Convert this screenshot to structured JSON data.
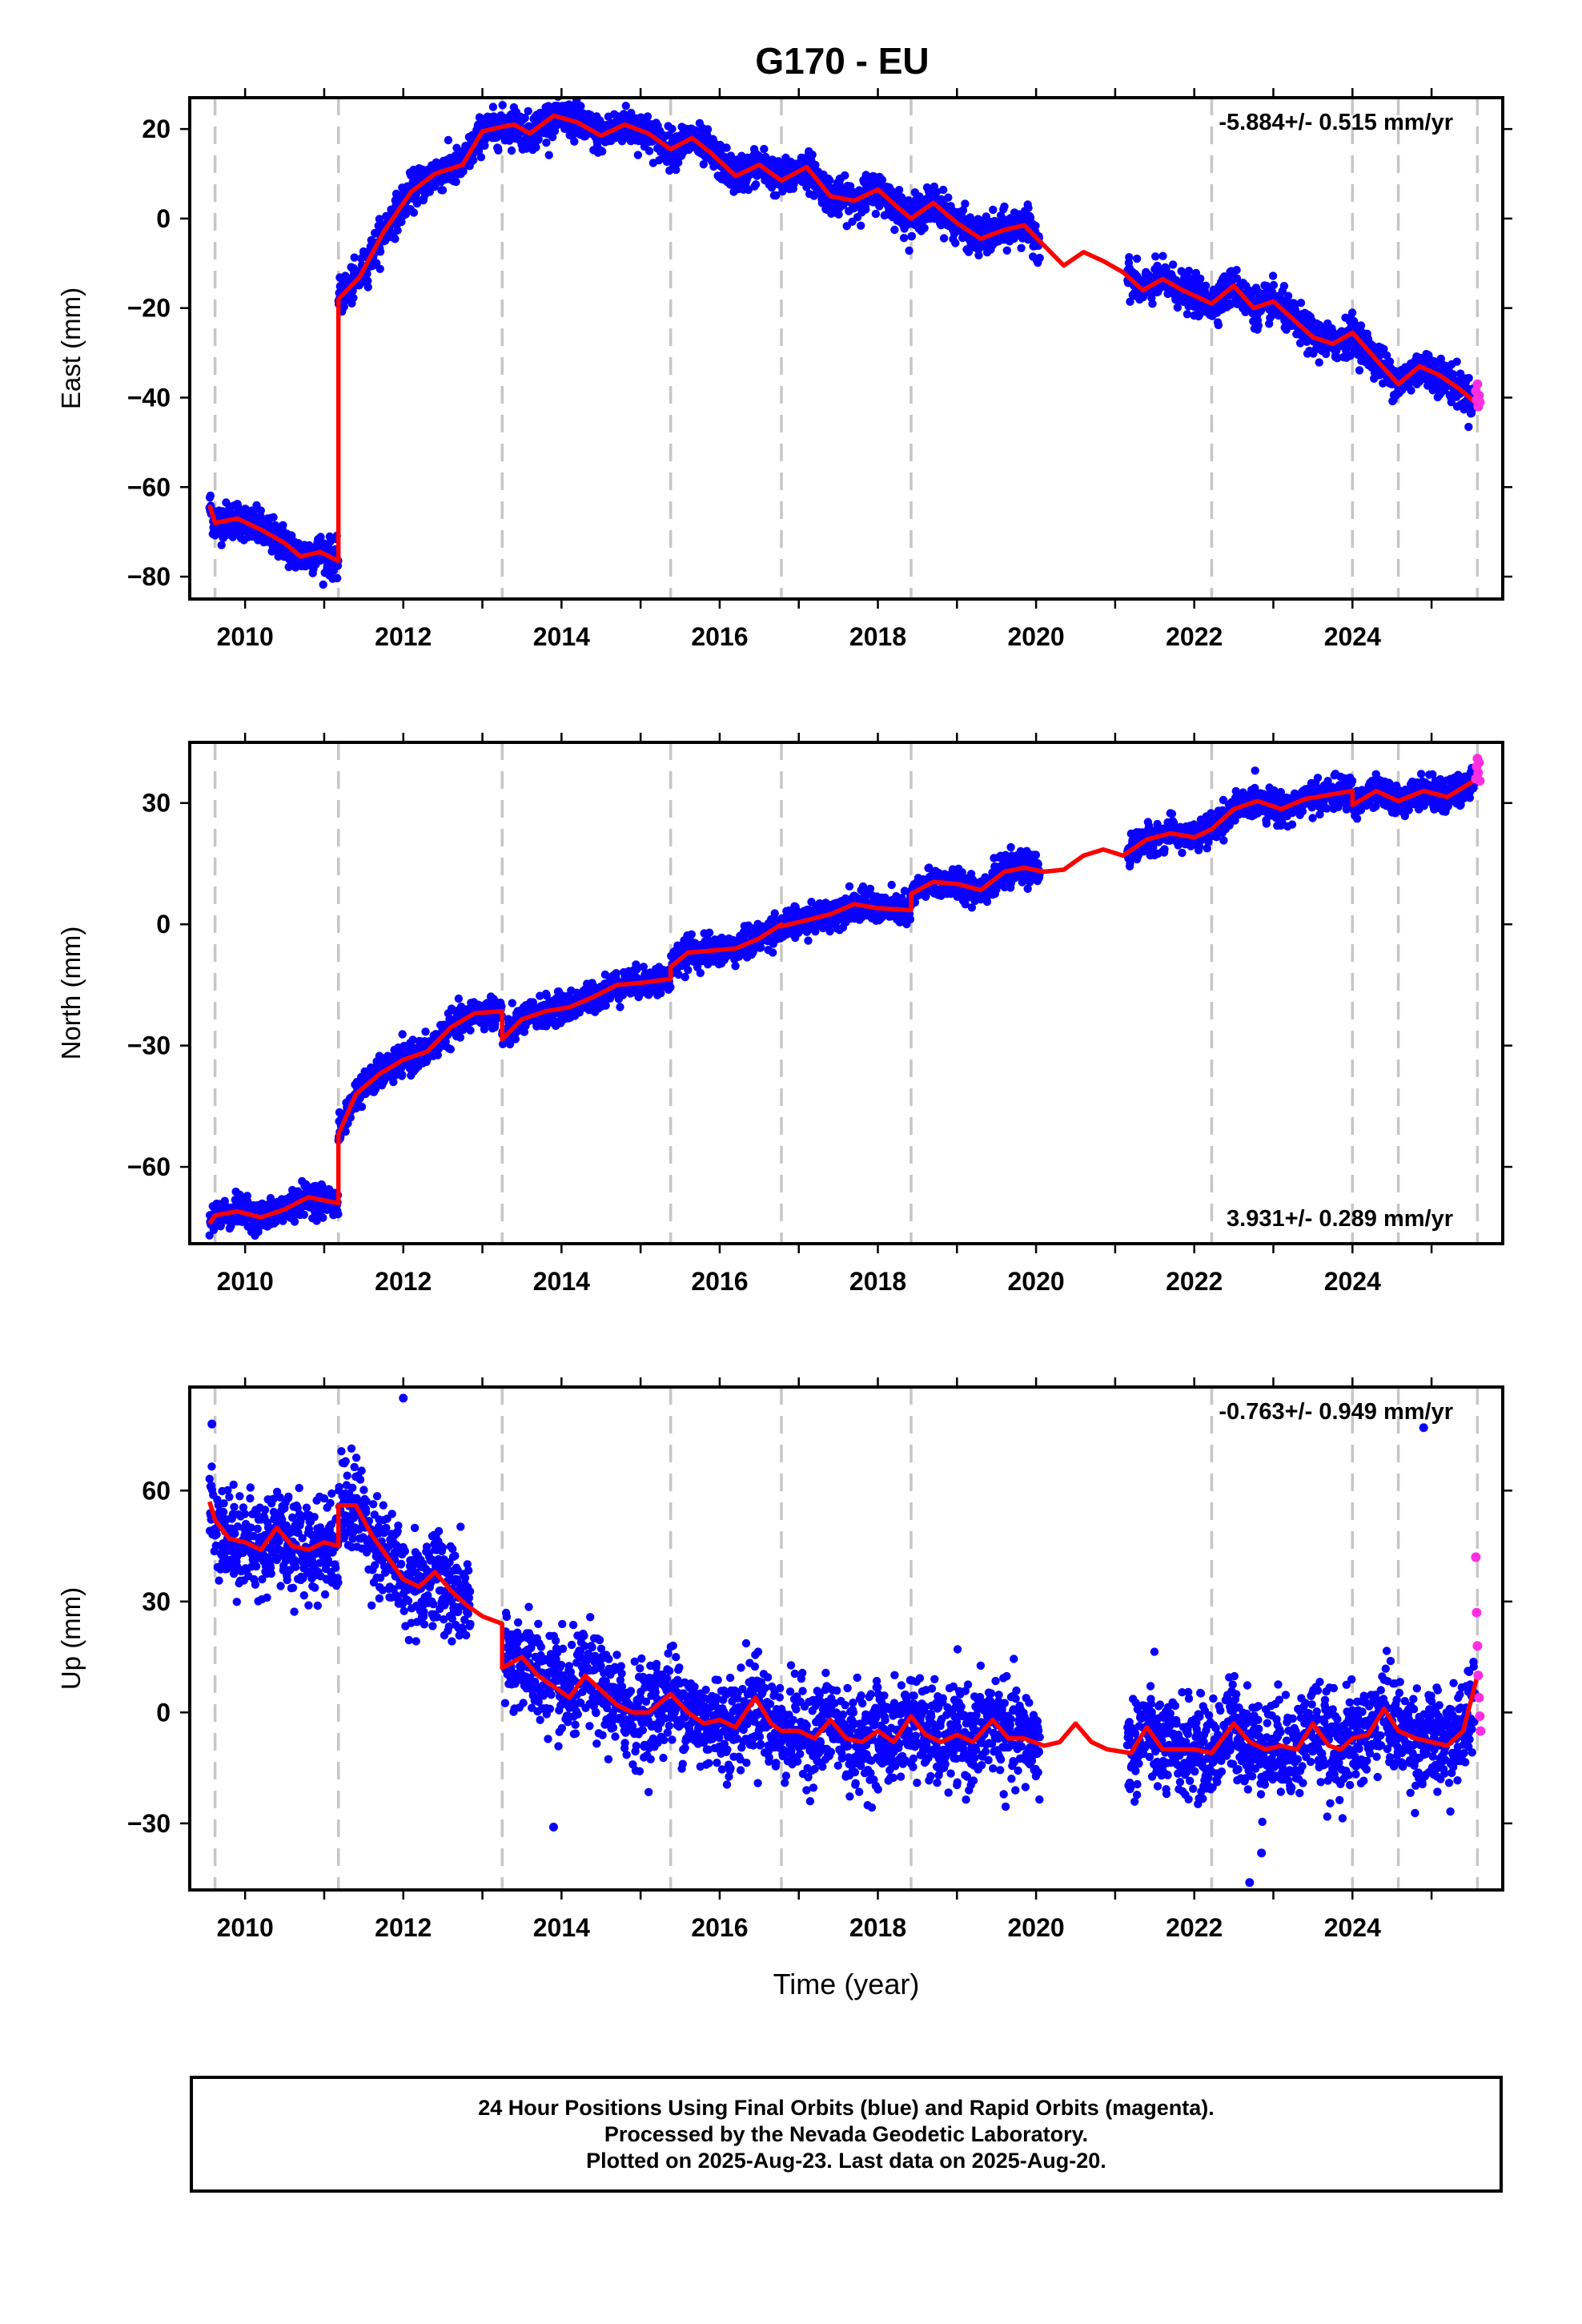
{
  "title": "G170 - EU",
  "colors": {
    "final_points": "#0a00ff",
    "rapid_points": "#ff2fe0",
    "model_line": "#ff0000",
    "event_lines": "#c6c6c6",
    "frame": "#000000"
  },
  "footer": {
    "line1": "24 Hour Positions Using Final Orbits (blue) and Rapid Orbits (magenta).",
    "line2": "Processed by the Nevada Geodetic Laboratory.",
    "line3": "Plotted on 2025-Aug-23. Last data on 2025-Aug-20."
  },
  "chart_data": [
    {
      "type": "scatter",
      "ylabel": "East (mm)",
      "xlabel": "",
      "rate_label": "-5.884+/- 0.515 mm/yr",
      "rate_position": "top-right",
      "xlim": [
        2009.3,
        2025.9
      ],
      "ylim": [
        -85,
        27
      ],
      "xticks": [
        2010,
        2012,
        2014,
        2016,
        2018,
        2020,
        2022,
        2024
      ],
      "yticks": [
        -80,
        -60,
        -40,
        -20,
        0,
        20
      ],
      "event_lines": [
        2009.62,
        2011.18,
        2013.25,
        2015.38,
        2016.78,
        2018.42,
        2022.22,
        2024.0,
        2024.58,
        2025.58
      ],
      "final_series": {
        "name": "Final Orbits",
        "scatter_mm": 2.0,
        "data_gaps": [
          [
            2020.05,
            2021.15
          ]
        ],
        "range": [
          2009.55,
          2025.55
        ]
      },
      "rapid_series": {
        "name": "Rapid Orbits",
        "x": [
          2025.56,
          2025.57,
          2025.58,
          2025.59,
          2025.6,
          2025.61
        ],
        "y": [
          -38.5,
          -40.5,
          -37,
          -42,
          -39.5,
          -41
        ]
      },
      "model": {
        "name": "Model fit",
        "x": [
          2009.55,
          2009.62,
          2009.62,
          2009.9,
          2010.2,
          2010.5,
          2010.7,
          2010.95,
          2011.18,
          2011.18,
          2011.45,
          2011.75,
          2012.1,
          2012.4,
          2012.75,
          2013.0,
          2013.25,
          2013.25,
          2013.4,
          2013.6,
          2013.9,
          2014.2,
          2014.5,
          2014.8,
          2015.1,
          2015.38,
          2015.38,
          2015.65,
          2015.9,
          2016.2,
          2016.5,
          2016.78,
          2016.78,
          2017.1,
          2017.4,
          2017.7,
          2018.0,
          2018.25,
          2018.42,
          2018.42,
          2018.7,
          2019.0,
          2019.3,
          2019.6,
          2019.85,
          2020.1,
          2020.35,
          2020.6,
          2020.85,
          2021.1,
          2021.35,
          2021.6,
          2021.85,
          2022.22,
          2022.22,
          2022.5,
          2022.75,
          2023.0,
          2023.25,
          2023.5,
          2023.75,
          2024.0,
          2024.0,
          2024.3,
          2024.58,
          2024.58,
          2024.85,
          2025.1,
          2025.35,
          2025.58
        ],
        "y": [
          -64,
          -68,
          -68,
          -67,
          -69.5,
          -72.5,
          -75.5,
          -74.5,
          -76.5,
          -18,
          -13,
          -3,
          6,
          10,
          12,
          19.5,
          20.5,
          20.5,
          21,
          19,
          23,
          21.5,
          18.5,
          21,
          19,
          15.5,
          15.5,
          18,
          14.5,
          9.5,
          12,
          8.5,
          8.5,
          11.5,
          5,
          4,
          6.5,
          2.5,
          0,
          0,
          3.5,
          -1,
          -4.5,
          -2.5,
          -1.5,
          -6,
          -10.5,
          -7.5,
          -9.5,
          -12,
          -16,
          -13.5,
          -16,
          -19,
          -19,
          -15,
          -20,
          -18.5,
          -22.5,
          -26.5,
          -28,
          -25.5,
          -25.5,
          -31.5,
          -37,
          -37,
          -33,
          -35,
          -38,
          -41.5
        ]
      }
    },
    {
      "type": "scatter",
      "ylabel": "North (mm)",
      "xlabel": "",
      "rate_label": "3.931+/- 0.289 mm/yr",
      "rate_position": "bottom-right",
      "xlim": [
        2009.3,
        2025.9
      ],
      "ylim": [
        -79,
        45
      ],
      "xticks": [
        2010,
        2012,
        2014,
        2016,
        2018,
        2020,
        2022,
        2024
      ],
      "yticks": [
        -60,
        -30,
        0,
        30
      ],
      "event_lines": [
        2009.62,
        2011.18,
        2013.25,
        2015.38,
        2016.78,
        2018.42,
        2022.22,
        2024.0,
        2024.58,
        2025.58
      ],
      "final_series": {
        "name": "Final Orbits",
        "scatter_mm": 1.8,
        "data_gaps": [
          [
            2020.05,
            2021.15
          ]
        ],
        "range": [
          2009.55,
          2025.55
        ]
      },
      "rapid_series": {
        "name": "Rapid Orbits",
        "x": [
          2025.56,
          2025.57,
          2025.58,
          2025.59,
          2025.6,
          2025.61
        ],
        "y": [
          36,
          39,
          41,
          37.5,
          40,
          35.5
        ]
      },
      "model": {
        "name": "Model fit",
        "x": [
          2009.55,
          2009.62,
          2009.62,
          2009.9,
          2010.2,
          2010.5,
          2010.8,
          2011.18,
          2011.18,
          2011.4,
          2011.7,
          2012.0,
          2012.3,
          2012.6,
          2012.9,
          2013.25,
          2013.25,
          2013.5,
          2013.8,
          2014.1,
          2014.4,
          2014.7,
          2015.0,
          2015.38,
          2015.38,
          2015.6,
          2015.9,
          2016.2,
          2016.5,
          2016.78,
          2016.78,
          2017.1,
          2017.4,
          2017.7,
          2018.0,
          2018.42,
          2018.42,
          2018.7,
          2019.0,
          2019.3,
          2019.6,
          2019.85,
          2020.1,
          2020.35,
          2020.6,
          2020.85,
          2021.1,
          2021.4,
          2021.7,
          2022.0,
          2022.22,
          2022.22,
          2022.5,
          2022.8,
          2023.1,
          2023.4,
          2023.7,
          2024.0,
          2024.0,
          2024.3,
          2024.58,
          2024.58,
          2024.9,
          2025.2,
          2025.58
        ],
        "y": [
          -74,
          -72,
          -72,
          -71,
          -72.5,
          -70.5,
          -67.5,
          -69,
          -52,
          -42,
          -37,
          -33.5,
          -31.5,
          -25.5,
          -22,
          -21.5,
          -28.5,
          -23.5,
          -21.5,
          -20.5,
          -18,
          -15,
          -14.5,
          -13.5,
          -10.5,
          -7,
          -6.5,
          -6,
          -3.5,
          0,
          -0.5,
          1,
          2.5,
          5,
          4,
          3.5,
          7.5,
          10.5,
          10,
          8.5,
          13,
          14,
          13,
          13.5,
          17,
          18.5,
          17,
          21,
          22.5,
          21.5,
          23.5,
          23.5,
          28.5,
          30.5,
          28.5,
          31,
          32,
          33,
          29.5,
          33,
          30.5,
          30.5,
          33,
          31.5,
          36
        ]
      }
    },
    {
      "type": "scatter",
      "ylabel": "Up (mm)",
      "xlabel": "Time (year)",
      "rate_label": "-0.763+/- 0.949 mm/yr",
      "rate_position": "top-right",
      "xlim": [
        2009.3,
        2025.9
      ],
      "ylim": [
        -48,
        88
      ],
      "xticks": [
        2010,
        2012,
        2014,
        2016,
        2018,
        2020,
        2022,
        2024
      ],
      "yticks": [
        -30,
        0,
        30,
        60
      ],
      "event_lines": [
        2009.62,
        2011.18,
        2013.25,
        2015.38,
        2016.78,
        2018.42,
        2022.22,
        2024.0,
        2024.58,
        2025.58
      ],
      "final_series": {
        "name": "Final Orbits",
        "scatter_mm": 6.5,
        "data_gaps": [
          [
            2012.85,
            2013.28
          ],
          [
            2020.05,
            2021.15
          ]
        ],
        "range": [
          2009.55,
          2025.55
        ],
        "outliers_x": [
          2009.58,
          2012.0,
          2024.9,
          2022.85,
          2022.7,
          2013.9
        ],
        "outliers_y": [
          78,
          85,
          77,
          -38,
          -46,
          -31
        ]
      },
      "rapid_series": {
        "name": "Rapid Orbits",
        "x": [
          2025.56,
          2025.57,
          2025.58,
          2025.59,
          2025.6,
          2025.61,
          2025.62
        ],
        "y": [
          42,
          27,
          18,
          10,
          4,
          -1,
          -5
        ]
      },
      "model": {
        "name": "Model fit",
        "x": [
          2009.55,
          2009.62,
          2009.62,
          2009.8,
          2010.0,
          2010.2,
          2010.4,
          2010.6,
          2010.8,
          2011.0,
          2011.18,
          2011.18,
          2011.4,
          2011.6,
          2011.8,
          2012.0,
          2012.2,
          2012.4,
          2012.6,
          2012.8,
          2013.0,
          2013.25,
          2013.25,
          2013.5,
          2013.7,
          2013.9,
          2014.1,
          2014.3,
          2014.5,
          2014.7,
          2014.9,
          2015.1,
          2015.38,
          2015.38,
          2015.6,
          2015.8,
          2016.0,
          2016.2,
          2016.45,
          2016.65,
          2016.78,
          2016.78,
          2017.0,
          2017.2,
          2017.4,
          2017.6,
          2017.8,
          2018.0,
          2018.2,
          2018.42,
          2018.42,
          2018.6,
          2018.8,
          2019.0,
          2019.2,
          2019.45,
          2019.65,
          2019.85,
          2020.1,
          2020.3,
          2020.5,
          2020.7,
          2020.9,
          2021.2,
          2021.4,
          2021.6,
          2021.8,
          2022.0,
          2022.22,
          2022.22,
          2022.5,
          2022.7,
          2022.9,
          2023.1,
          2023.3,
          2023.5,
          2023.7,
          2023.85,
          2024.0,
          2024.0,
          2024.2,
          2024.4,
          2024.58,
          2024.58,
          2024.8,
          2025.0,
          2025.2,
          2025.4,
          2025.58
        ],
        "y": [
          57,
          52,
          52,
          47,
          46,
          44,
          50,
          45,
          44,
          46,
          45,
          56,
          56,
          48,
          42,
          36,
          34,
          38,
          33,
          29,
          26,
          24,
          12,
          15,
          10,
          7,
          4,
          10,
          6,
          2,
          0,
          0,
          5,
          5,
          0,
          -3,
          -2,
          -4,
          4,
          -3,
          -5,
          -5,
          -5,
          -7,
          -2,
          -7,
          -8,
          -5,
          -8,
          -1,
          -1,
          -6,
          -8,
          -6,
          -8,
          -2,
          -7,
          -7,
          -9,
          -8,
          -3,
          -8,
          -10,
          -11,
          -4,
          -10,
          -10,
          -10,
          -11,
          -11,
          -3,
          -8,
          -10,
          -9,
          -10,
          -3,
          -9,
          -10,
          -7,
          -7,
          -6,
          1,
          -5,
          -5,
          -7,
          -8,
          -9,
          -5,
          10
        ]
      }
    }
  ]
}
